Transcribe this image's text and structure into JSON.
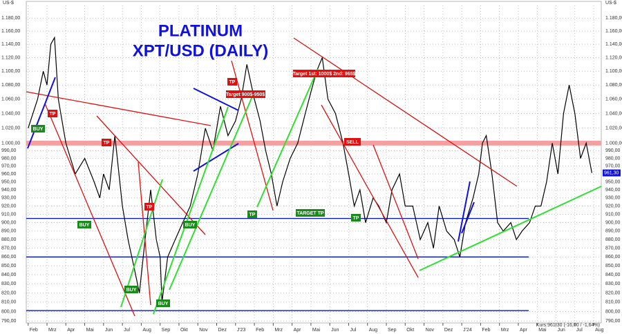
{
  "chart_data": {
    "type": "line",
    "title": "PLATINUM",
    "subtitle": "XPT/USD (DAILY)",
    "axis_unit": "US-$",
    "footer": "Kurs:961,30 (-16,00 / -1,64%)",
    "last_price_label": {
      "value": 961.3,
      "label": "961,30"
    },
    "yscale": "log",
    "grid": true,
    "ylim": [
      788,
      1200
    ],
    "yticks": [
      {
        "value": 1180,
        "label": "1.180,00"
      },
      {
        "value": 1160,
        "label": "1.160,00"
      },
      {
        "value": 1140,
        "label": "1.140,00"
      },
      {
        "value": 1120,
        "label": "1.120,00"
      },
      {
        "value": 1100,
        "label": "1.100,00"
      },
      {
        "value": 1080,
        "label": "1.080,00"
      },
      {
        "value": 1060,
        "label": "1.060,00"
      },
      {
        "value": 1040,
        "label": "1.040,00"
      },
      {
        "value": 1020,
        "label": "1.020,00"
      },
      {
        "value": 1000,
        "label": "1.000,00"
      },
      {
        "value": 990,
        "label": "990,00"
      },
      {
        "value": 980,
        "label": "980,00"
      },
      {
        "value": 970,
        "label": "970,00"
      },
      {
        "value": 960,
        "label": "960,00"
      },
      {
        "value": 950,
        "label": "950,00"
      },
      {
        "value": 940,
        "label": "940,00"
      },
      {
        "value": 930,
        "label": "930,00"
      },
      {
        "value": 920,
        "label": "920,00"
      },
      {
        "value": 910,
        "label": "910,00"
      },
      {
        "value": 900,
        "label": "900,00"
      },
      {
        "value": 890,
        "label": "890,00"
      },
      {
        "value": 880,
        "label": "880,00"
      },
      {
        "value": 870,
        "label": "870,00"
      },
      {
        "value": 860,
        "label": "860,00"
      },
      {
        "value": 850,
        "label": "850,00"
      },
      {
        "value": 840,
        "label": "840,00"
      },
      {
        "value": 830,
        "label": "830,00"
      },
      {
        "value": 820,
        "label": "820,00"
      },
      {
        "value": 810,
        "label": "810,00"
      },
      {
        "value": 800,
        "label": "800,00"
      },
      {
        "value": 790,
        "label": "790,00"
      }
    ],
    "xlim": [
      -0.1,
      30.4
    ],
    "xticks": [
      {
        "value": 0,
        "label": "Feb"
      },
      {
        "value": 1,
        "label": "Mrz"
      },
      {
        "value": 2,
        "label": "Apr"
      },
      {
        "value": 3,
        "label": "Mai"
      },
      {
        "value": 4,
        "label": "Jun"
      },
      {
        "value": 5,
        "label": "Jul"
      },
      {
        "value": 6,
        "label": "Aug"
      },
      {
        "value": 7,
        "label": "Sep"
      },
      {
        "value": 8,
        "label": "Okt"
      },
      {
        "value": 9,
        "label": "Nov"
      },
      {
        "value": 10,
        "label": "Dez"
      },
      {
        "value": 11,
        "label": "J'23"
      },
      {
        "value": 12,
        "label": "Feb"
      },
      {
        "value": 13,
        "label": "Mrz"
      },
      {
        "value": 14,
        "label": "Apr"
      },
      {
        "value": 15,
        "label": "Mai"
      },
      {
        "value": 16,
        "label": "Jun"
      },
      {
        "value": 17,
        "label": "Jul"
      },
      {
        "value": 18,
        "label": "Aug"
      },
      {
        "value": 19,
        "label": "Sep"
      },
      {
        "value": 20,
        "label": "Okt"
      },
      {
        "value": 21,
        "label": "Nov"
      },
      {
        "value": 22,
        "label": "Dez"
      },
      {
        "value": 23,
        "label": "J'24"
      },
      {
        "value": 24,
        "label": "Feb"
      },
      {
        "value": 25,
        "label": "Mrz"
      },
      {
        "value": 26,
        "label": "Apr"
      },
      {
        "value": 27,
        "label": "Mai"
      },
      {
        "value": 28,
        "label": "Jun"
      },
      {
        "value": 29,
        "label": "Jul"
      },
      {
        "value": 30,
        "label": "Aug"
      }
    ],
    "levels": [
      {
        "value": 1000,
        "color": "#f4a0a0"
      },
      {
        "value": 905,
        "color": "#0a1ab4"
      },
      {
        "value": 860,
        "color": "#0a1ab4"
      },
      {
        "value": 801,
        "color": "#0a1ab4"
      }
    ],
    "series": [
      {
        "color": "#000000",
        "x": [
          0,
          0.5,
          0.8,
          1.0,
          1.2,
          1.4,
          1.6,
          2.0,
          2.5,
          3.0,
          3.5,
          3.8,
          4.0,
          4.3,
          4.6,
          5.0,
          5.3,
          5.6,
          5.9,
          6.2,
          6.5,
          6.8,
          7.0,
          7.1,
          7.4,
          7.8,
          8.2,
          8.6,
          9.0,
          9.4,
          9.8,
          10.2,
          10.6,
          11.0,
          11.3,
          11.6,
          12.0,
          12.3,
          12.6,
          12.9,
          13.2,
          13.5,
          13.9,
          14.3,
          14.7,
          15.0,
          15.3,
          15.6,
          15.9,
          16.3,
          16.7,
          17.0,
          17.3,
          17.6,
          17.9,
          18.3,
          18.6,
          19.0,
          19.3,
          19.7,
          20.0,
          20.4,
          20.8,
          21.2,
          21.5,
          21.8,
          22.2,
          22.6,
          22.9,
          23.2,
          23.6,
          23.9,
          24.1,
          24.3,
          24.6,
          24.9,
          25.2,
          25.6,
          25.9,
          26.2,
          26.6,
          26.9,
          27.2,
          27.5,
          27.8,
          28.1,
          28.4,
          28.7,
          29.0,
          29.3,
          29.6,
          29.9
        ],
        "values": [
          1020,
          1060,
          1100,
          1080,
          1140,
          1150,
          1060,
          1000,
          960,
          980,
          950,
          930,
          960,
          940,
          1010,
          920,
          880,
          850,
          820,
          880,
          940,
          880,
          860,
          810,
          860,
          880,
          900,
          920,
          960,
          1020,
          990,
          1050,
          1010,
          1030,
          1060,
          1110,
          1060,
          1030,
          990,
          960,
          920,
          950,
          980,
          1000,
          1040,
          1070,
          1100,
          1120,
          1060,
          1040,
          1000,
          960,
          920,
          940,
          900,
          930,
          920,
          900,
          940,
          960,
          920,
          920,
          880,
          900,
          870,
          920,
          890,
          880,
          860,
          900,
          930,
          960,
          1000,
          1010,
          960,
          900,
          890,
          900,
          880,
          890,
          900,
          920,
          920,
          950,
          1000,
          960,
          1040,
          1080,
          1040,
          980,
          1000,
          961.3
        ]
      }
    ],
    "annotations": [
      "BUY",
      "TP",
      "TP",
      "BUY",
      "BUY",
      "TP",
      "BUY",
      "BUY",
      "TP",
      "Target 900$-950$",
      "TP",
      "Target 1st: 1000$ 2nd: 965$",
      "SELL",
      "TARGET TP",
      "TP"
    ]
  }
}
